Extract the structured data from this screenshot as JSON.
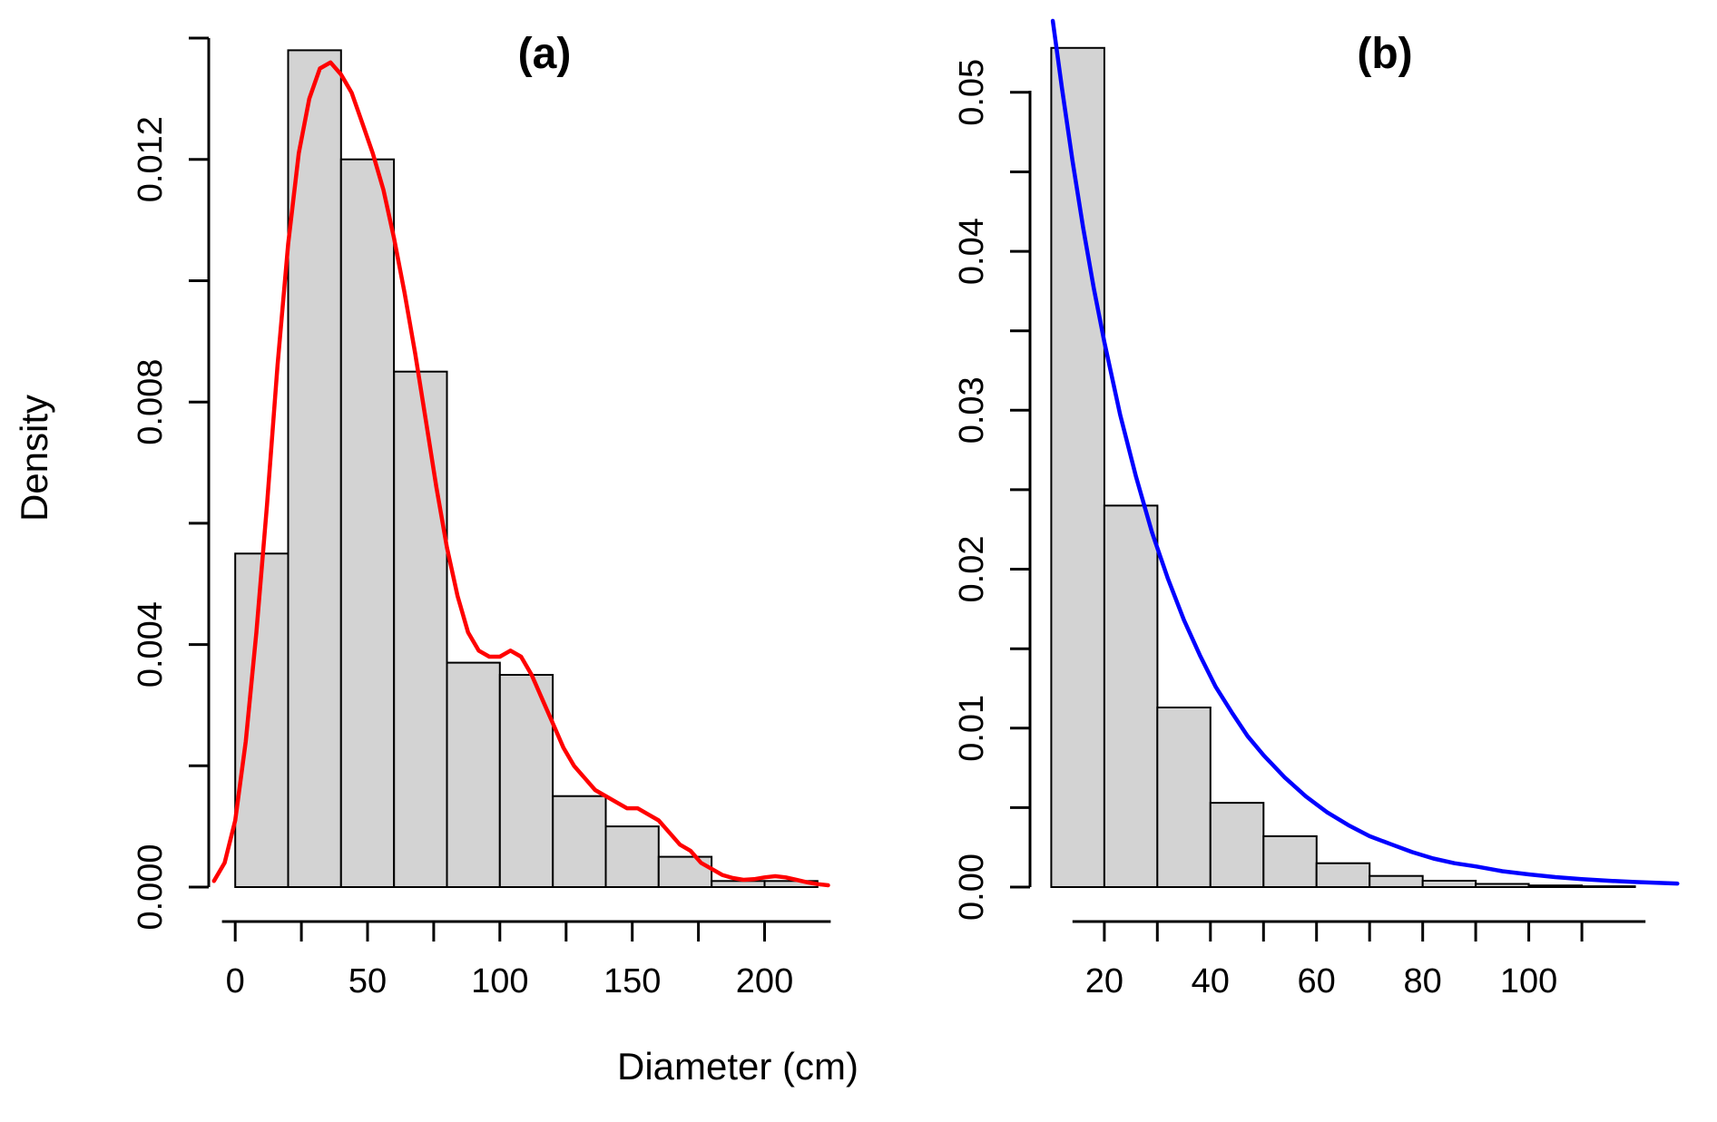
{
  "figure": {
    "background": "#ffffff",
    "xlabel": "Diameter (cm)",
    "ylabel": "Density",
    "bar_fill": "#d3d3d3",
    "bar_stroke": "#000000",
    "axis_color": "#000000"
  },
  "chart_data": [
    {
      "type": "bar",
      "variant": "histogram_with_curve",
      "title": "(a)",
      "xlabel": "Diameter (cm)",
      "ylabel": "Density",
      "bin_start": 0,
      "bin_width": 20,
      "densities": [
        0.0055,
        0.0138,
        0.012,
        0.0085,
        0.0037,
        0.0035,
        0.0015,
        0.001,
        0.0005,
        0.0001,
        0.0001
      ],
      "xlim": [
        -10,
        230
      ],
      "ylim": [
        0,
        0.01418
      ],
      "grid": false,
      "legend": false,
      "x_axis_line": [
        -5,
        225
      ],
      "x_ticks": {
        "major": [
          0,
          50,
          100,
          150,
          200
        ],
        "labels": [
          "0",
          "50",
          "100",
          "150",
          "200"
        ],
        "minor": [
          25,
          75,
          125,
          175
        ]
      },
      "y_ticks": {
        "major": [
          0,
          0.004,
          0.008,
          0.012
        ],
        "labels": [
          "0.000",
          "0.004",
          "0.008",
          "0.012"
        ],
        "minor": [
          0.002,
          0.006,
          0.01,
          0.014
        ]
      },
      "curve": {
        "name": "kernel-density-curve",
        "color": "#ff0000",
        "points": [
          [
            -8,
            0.0001
          ],
          [
            -4,
            0.0004
          ],
          [
            0,
            0.0011
          ],
          [
            4,
            0.0024
          ],
          [
            8,
            0.0042
          ],
          [
            12,
            0.0063
          ],
          [
            16,
            0.0086
          ],
          [
            20,
            0.0106
          ],
          [
            24,
            0.0121
          ],
          [
            28,
            0.013
          ],
          [
            32,
            0.0135
          ],
          [
            36,
            0.0136
          ],
          [
            40,
            0.0134
          ],
          [
            44,
            0.0131
          ],
          [
            48,
            0.0126
          ],
          [
            52,
            0.0121
          ],
          [
            56,
            0.0115
          ],
          [
            60,
            0.0107
          ],
          [
            64,
            0.0098
          ],
          [
            68,
            0.0088
          ],
          [
            72,
            0.0077
          ],
          [
            76,
            0.0066
          ],
          [
            80,
            0.0056
          ],
          [
            84,
            0.0048
          ],
          [
            88,
            0.0042
          ],
          [
            92,
            0.0039
          ],
          [
            96,
            0.0038
          ],
          [
            100,
            0.0038
          ],
          [
            104,
            0.0039
          ],
          [
            108,
            0.0038
          ],
          [
            112,
            0.0035
          ],
          [
            116,
            0.0031
          ],
          [
            120,
            0.0027
          ],
          [
            124,
            0.0023
          ],
          [
            128,
            0.002
          ],
          [
            132,
            0.0018
          ],
          [
            136,
            0.0016
          ],
          [
            140,
            0.0015
          ],
          [
            144,
            0.0014
          ],
          [
            148,
            0.0013
          ],
          [
            152,
            0.0013
          ],
          [
            156,
            0.0012
          ],
          [
            160,
            0.0011
          ],
          [
            164,
            0.0009
          ],
          [
            168,
            0.0007
          ],
          [
            172,
            0.0006
          ],
          [
            176,
            0.0004
          ],
          [
            180,
            0.0003
          ],
          [
            184,
            0.0002
          ],
          [
            188,
            0.00015
          ],
          [
            192,
            0.00012
          ],
          [
            196,
            0.00013
          ],
          [
            200,
            0.00016
          ],
          [
            204,
            0.00018
          ],
          [
            208,
            0.00016
          ],
          [
            212,
            0.00012
          ],
          [
            216,
            8e-05
          ],
          [
            220,
            5e-05
          ],
          [
            224,
            3e-05
          ]
        ]
      }
    },
    {
      "type": "bar",
      "variant": "histogram_with_curve",
      "title": "(b)",
      "xlabel": "Diameter (cm)",
      "ylabel": "Density",
      "bin_start": 10,
      "bin_width": 10,
      "densities": [
        0.0528,
        0.024,
        0.0113,
        0.0053,
        0.0032,
        0.0015,
        0.0007,
        0.0004,
        0.0002,
        0.0001,
        5e-05
      ],
      "xlim": [
        6,
        130
      ],
      "ylim": [
        0,
        0.0541
      ],
      "grid": false,
      "legend": false,
      "x_axis_line": [
        14,
        122
      ],
      "x_ticks": {
        "major": [
          20,
          40,
          60,
          80,
          100
        ],
        "labels": [
          "20",
          "40",
          "60",
          "80",
          "100"
        ],
        "minor": [
          30,
          50,
          70,
          90,
          110
        ]
      },
      "y_ticks": {
        "major": [
          0,
          0.01,
          0.02,
          0.03,
          0.04,
          0.05
        ],
        "labels": [
          "0.00",
          "0.01",
          "0.02",
          "0.03",
          "0.04",
          "0.05"
        ],
        "minor": [
          0.005,
          0.015,
          0.025,
          0.035,
          0.045
        ]
      },
      "curve": {
        "name": "exponential-fit-curve",
        "color": "#0000ff",
        "points": [
          [
            10.3,
            0.0545
          ],
          [
            12,
            0.0503
          ],
          [
            14,
            0.0457
          ],
          [
            16,
            0.0415
          ],
          [
            18,
            0.0377
          ],
          [
            20,
            0.0343
          ],
          [
            23,
            0.0297
          ],
          [
            26,
            0.0258
          ],
          [
            29,
            0.0223
          ],
          [
            32,
            0.0194
          ],
          [
            35,
            0.0168
          ],
          [
            38,
            0.0146
          ],
          [
            41,
            0.0126
          ],
          [
            44,
            0.011
          ],
          [
            47,
            0.0095
          ],
          [
            50,
            0.0083
          ],
          [
            54,
            0.0069
          ],
          [
            58,
            0.0057
          ],
          [
            62,
            0.0047
          ],
          [
            66,
            0.0039
          ],
          [
            70,
            0.0032
          ],
          [
            74,
            0.0027
          ],
          [
            78,
            0.0022
          ],
          [
            82,
            0.0018
          ],
          [
            86,
            0.0015
          ],
          [
            90,
            0.0013
          ],
          [
            95,
            0.001
          ],
          [
            100,
            0.0008
          ],
          [
            105,
            0.00063
          ],
          [
            110,
            0.0005
          ],
          [
            115,
            0.0004
          ],
          [
            120,
            0.00032
          ],
          [
            124,
            0.00027
          ],
          [
            128,
            0.00022
          ]
        ]
      }
    }
  ]
}
